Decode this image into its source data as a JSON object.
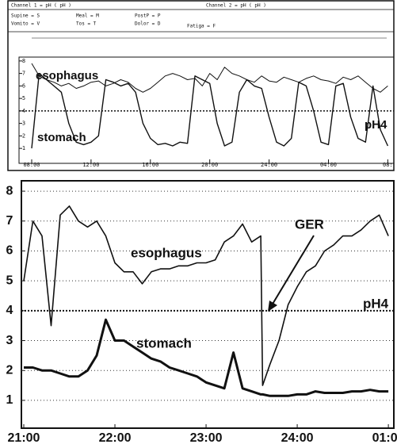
{
  "chart_data": [
    {
      "type": "line",
      "header": [
        "Channel 1 = pH ( pH )",
        "Channel 2 = pH ( pH )",
        "Supine = S",
        "Meal = M",
        "PostP = P",
        "Vomito = V",
        "Tos = T",
        "Dolor = D",
        "Fatiga = F"
      ],
      "annotations": [
        "esophagus",
        "stomach"
      ],
      "reference_line": {
        "value": 4,
        "label": "pH4"
      },
      "grid": false,
      "x": [
        8,
        8.5,
        9,
        9.5,
        10,
        10.5,
        11,
        11.5,
        12,
        12.5,
        13,
        13.5,
        14,
        14.5,
        15,
        15.5,
        16,
        16.5,
        17,
        17.5,
        18,
        18.5,
        19,
        19.5,
        20,
        20.5,
        21,
        21.5,
        22,
        22.5,
        23,
        23.5,
        24,
        24.5,
        25,
        25.5,
        26,
        26.5,
        27,
        27.5,
        28,
        28.5,
        29,
        29.5,
        30,
        30.5,
        31,
        31.5,
        32
      ],
      "xlim": [
        8,
        32.3
      ],
      "xticks": [
        {
          "value": 8,
          "label": "08:00"
        },
        {
          "value": 12,
          "label": "12:00"
        },
        {
          "value": 16,
          "label": "16:00"
        },
        {
          "value": 20,
          "label": "20:00"
        },
        {
          "value": 24,
          "label": "24:00"
        },
        {
          "value": 28,
          "label": "04:00"
        },
        {
          "value": 32,
          "label": "08:"
        }
      ],
      "ylim": [
        0.5,
        8.5
      ],
      "yticks": [
        1,
        2,
        3,
        4,
        5,
        6,
        7,
        8
      ],
      "series": [
        {
          "name": "esophagus",
          "color": "#111111",
          "width": 1,
          "values": [
            7.8,
            6.8,
            6.5,
            6.3,
            6.0,
            6.2,
            5.8,
            6.0,
            6.3,
            6.4,
            6.0,
            6.2,
            6.5,
            6.3,
            5.8,
            5.5,
            5.8,
            6.3,
            6.8,
            7.0,
            6.8,
            6.5,
            6.6,
            6.0,
            7.0,
            6.5,
            7.5,
            7.0,
            6.8,
            6.5,
            6.3,
            6.8,
            6.4,
            6.3,
            6.7,
            6.5,
            6.3,
            6.6,
            6.8,
            6.5,
            6.4,
            6.2,
            6.7,
            6.5,
            6.8,
            6.3,
            5.8,
            5.5,
            6.0
          ]
        },
        {
          "name": "stomach",
          "color": "#111111",
          "width": 1.4,
          "values": [
            1.0,
            7.0,
            6.5,
            6.0,
            5.5,
            3.0,
            1.5,
            1.3,
            1.5,
            2.0,
            6.5,
            6.3,
            6.0,
            6.2,
            5.5,
            3.0,
            1.8,
            1.3,
            1.4,
            1.2,
            1.5,
            1.4,
            6.8,
            6.5,
            6.2,
            3.0,
            1.2,
            1.5,
            5.5,
            6.5,
            6.0,
            5.8,
            3.5,
            1.5,
            1.2,
            1.8,
            6.3,
            6.0,
            4.0,
            1.5,
            1.3,
            6.0,
            6.2,
            3.5,
            1.8,
            1.5,
            6.0,
            2.5,
            1.2
          ]
        }
      ]
    },
    {
      "type": "line",
      "annotations": [
        "esophagus",
        "stomach",
        "GER"
      ],
      "reference_line": {
        "value": 4,
        "label": "pH4"
      },
      "grid": true,
      "x": [
        21,
        21.1,
        21.2,
        21.3,
        21.4,
        21.5,
        21.6,
        21.7,
        21.8,
        21.9,
        22,
        22.1,
        22.2,
        22.3,
        22.4,
        22.5,
        22.6,
        22.7,
        22.8,
        22.9,
        23,
        23.1,
        23.2,
        23.3,
        23.4,
        23.5,
        23.6,
        23.62,
        23.7,
        23.8,
        23.9,
        24,
        24.1,
        24.2,
        24.3,
        24.4,
        24.5,
        24.6,
        24.7,
        24.8,
        24.9,
        25
      ],
      "xlim": [
        21,
        25.06
      ],
      "xticks": [
        {
          "value": 21,
          "label": "21:00"
        },
        {
          "value": 22,
          "label": "22:00"
        },
        {
          "value": 23,
          "label": "23:00"
        },
        {
          "value": 24,
          "label": "24:00"
        },
        {
          "value": 25,
          "label": "01:00"
        }
      ],
      "ylim": [
        0.6,
        8.4
      ],
      "yticks": [
        1,
        2,
        3,
        4,
        5,
        6,
        7,
        8
      ],
      "series": [
        {
          "name": "esophagus",
          "color": "#111111",
          "width": 1.6,
          "values": [
            5.0,
            7.0,
            6.5,
            3.5,
            7.2,
            7.5,
            7.0,
            6.8,
            7.0,
            6.5,
            5.6,
            5.3,
            5.3,
            4.9,
            5.3,
            5.4,
            5.4,
            5.5,
            5.5,
            5.6,
            5.6,
            5.7,
            6.3,
            6.5,
            6.9,
            6.3,
            6.5,
            1.5,
            2.2,
            3.0,
            4.2,
            4.8,
            5.3,
            5.5,
            6.0,
            6.2,
            6.5,
            6.5,
            6.7,
            7.0,
            7.2,
            6.5
          ]
        },
        {
          "name": "stomach",
          "color": "#111111",
          "width": 3,
          "values": [
            2.1,
            2.1,
            2.0,
            2.0,
            1.9,
            1.8,
            1.8,
            2.0,
            2.5,
            3.7,
            3.0,
            3.0,
            2.8,
            2.6,
            2.4,
            2.3,
            2.1,
            2.0,
            1.9,
            1.8,
            1.6,
            1.5,
            1.4,
            2.6,
            1.4,
            1.3,
            1.2,
            1.2,
            1.15,
            1.15,
            1.15,
            1.2,
            1.2,
            1.3,
            1.25,
            1.25,
            1.25,
            1.3,
            1.3,
            1.35,
            1.3,
            1.3
          ]
        }
      ]
    }
  ]
}
